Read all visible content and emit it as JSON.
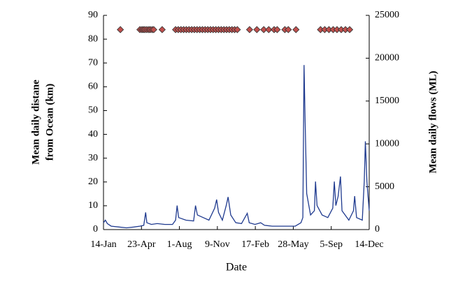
{
  "chart_data": {
    "type": "line",
    "xlabel": "Date",
    "ylabel": [
      "Mean daily distane",
      "from Ocean (km)"
    ],
    "y2label": "Mean daily flows (ML)",
    "xlim": [
      0,
      693
    ],
    "xticks": [
      {
        "value": 0,
        "label": "14-Jan"
      },
      {
        "value": 99,
        "label": "23-Apr"
      },
      {
        "value": 198,
        "label": "1-Aug"
      },
      {
        "value": 297,
        "label": "9-Nov"
      },
      {
        "value": 396,
        "label": "17-Feb"
      },
      {
        "value": 495,
        "label": "28-May"
      },
      {
        "value": 594,
        "label": "5-Sep"
      },
      {
        "value": 693,
        "label": "14-Dec"
      }
    ],
    "ylim": [
      0,
      90
    ],
    "yticks": [
      0,
      10,
      20,
      30,
      40,
      50,
      60,
      70,
      80,
      90
    ],
    "y2lim": [
      0,
      25000
    ],
    "y2ticks": [
      0,
      5000,
      10000,
      15000,
      20000,
      25000
    ],
    "series": [
      {
        "type": "line",
        "axis": "y2",
        "color": "#1f3a8f",
        "x": [
          0,
          5,
          10,
          20,
          40,
          60,
          80,
          95,
          105,
          110,
          113,
          125,
          140,
          160,
          180,
          188,
          192,
          196,
          215,
          235,
          240,
          245,
          260,
          275,
          290,
          295,
          300,
          310,
          320,
          325,
          332,
          345,
          360,
          375,
          380,
          395,
          410,
          420,
          440,
          480,
          500,
          515,
          520,
          523,
          526,
          530,
          540,
          550,
          553,
          557,
          570,
          585,
          598,
          602,
          606,
          612,
          618,
          622,
          640,
          652,
          655,
          660,
          675,
          680,
          683,
          687,
          693
        ],
        "values": [
          800,
          1100,
          700,
          400,
          300,
          200,
          300,
          400,
          500,
          2000,
          800,
          600,
          700,
          600,
          600,
          1100,
          2800,
          1400,
          1100,
          1000,
          2800,
          1700,
          1400,
          1100,
          2500,
          3500,
          2000,
          1100,
          2800,
          3800,
          1700,
          800,
          700,
          1900,
          800,
          600,
          800,
          500,
          400,
          400,
          400,
          800,
          1400,
          19200,
          12500,
          4200,
          1700,
          2200,
          5600,
          2800,
          1700,
          1400,
          2500,
          5600,
          2800,
          3900,
          6200,
          2200,
          1100,
          2200,
          3900,
          1400,
          1100,
          5600,
          10300,
          5600,
          2200
        ]
      },
      {
        "type": "scatter",
        "color": "#c0504d",
        "x": [
          44,
          95,
          100,
          104,
          108,
          113,
          118,
          122,
          127,
          131,
          153,
          188,
          195,
          202,
          209,
          216,
          223,
          230,
          237,
          244,
          251,
          258,
          265,
          272,
          279,
          286,
          293,
          300,
          307,
          314,
          321,
          328,
          335,
          342,
          349,
          381,
          400,
          418,
          431,
          445,
          453,
          473,
          482,
          502,
          566,
          577,
          588,
          599,
          609,
          620,
          631,
          642
        ],
        "values": [
          84,
          84,
          84,
          84,
          84,
          84,
          84,
          84,
          84,
          84,
          84,
          84,
          84,
          84,
          84,
          84,
          84,
          84,
          84,
          84,
          84,
          84,
          84,
          84,
          84,
          84,
          84,
          84,
          84,
          84,
          84,
          84,
          84,
          84,
          84,
          84,
          84,
          84,
          84,
          84,
          84,
          84,
          84,
          84,
          84,
          84,
          84,
          84,
          84,
          84,
          84,
          84
        ]
      }
    ]
  }
}
